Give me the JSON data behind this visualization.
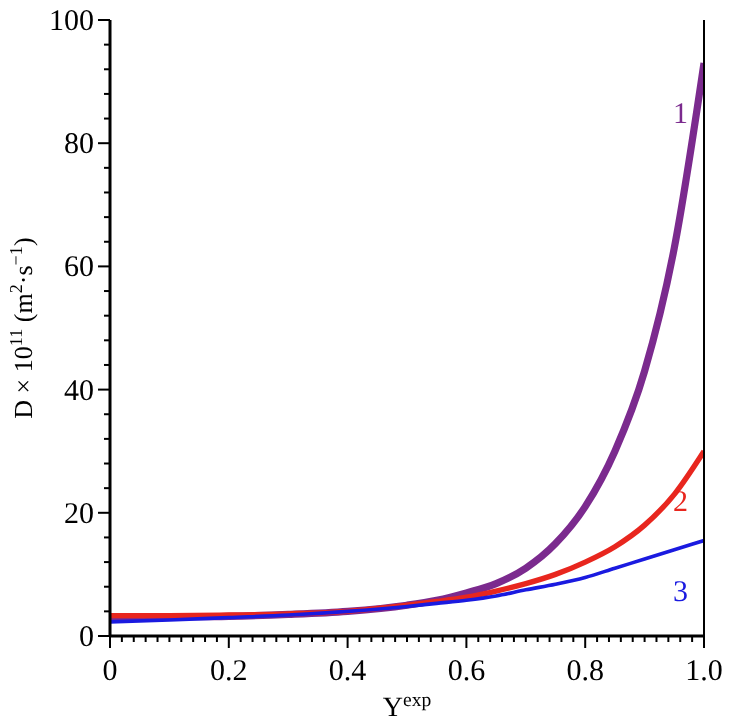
{
  "chart_data": {
    "type": "line",
    "xlabel": "Y$^{exp}$",
    "ylabel": "D × 10$^{11}$ (m$^{2}$·s$^{−1}$)",
    "xlim": [
      0,
      1
    ],
    "ylim": [
      0,
      100
    ],
    "xticks": [
      0,
      {
        "value": 0.02,
        "label": null
      },
      {
        "value": 0.04,
        "label": null
      },
      {
        "value": 0.06,
        "label": null
      },
      {
        "value": 0.08,
        "label": null
      },
      {
        "value": 0.1,
        "label": null
      },
      {
        "value": 0.12,
        "label": null
      },
      {
        "value": 0.14,
        "label": null
      },
      {
        "value": 0.16,
        "label": null
      },
      {
        "value": 0.18,
        "label": null
      },
      0.2,
      {
        "value": 0.22,
        "label": null
      },
      {
        "value": 0.24,
        "label": null
      },
      {
        "value": 0.26,
        "label": null
      },
      {
        "value": 0.28,
        "label": null
      },
      {
        "value": 0.3,
        "label": null
      },
      {
        "value": 0.32,
        "label": null
      },
      {
        "value": 0.34,
        "label": null
      },
      {
        "value": 0.36,
        "label": null
      },
      {
        "value": 0.38,
        "label": null
      },
      0.4,
      {
        "value": 0.42,
        "label": null
      },
      {
        "value": 0.44,
        "label": null
      },
      {
        "value": 0.46,
        "label": null
      },
      {
        "value": 0.48,
        "label": null
      },
      {
        "value": 0.5,
        "label": null
      },
      {
        "value": 0.52,
        "label": null
      },
      {
        "value": 0.54,
        "label": null
      },
      {
        "value": 0.56,
        "label": null
      },
      {
        "value": 0.58,
        "label": null
      },
      0.6,
      {
        "value": 0.62,
        "label": null
      },
      {
        "value": 0.64,
        "label": null
      },
      {
        "value": 0.66,
        "label": null
      },
      {
        "value": 0.68,
        "label": null
      },
      {
        "value": 0.7,
        "label": null
      },
      {
        "value": 0.72,
        "label": null
      },
      {
        "value": 0.74,
        "label": null
      },
      {
        "value": 0.76,
        "label": null
      },
      {
        "value": 0.78,
        "label": null
      },
      0.8,
      {
        "value": 0.82,
        "label": null
      },
      {
        "value": 0.84,
        "label": null
      },
      {
        "value": 0.86,
        "label": null
      },
      {
        "value": 0.88,
        "label": null
      },
      {
        "value": 0.9,
        "label": null
      },
      {
        "value": 0.92,
        "label": null
      },
      {
        "value": 0.94,
        "label": null
      },
      {
        "value": 0.96,
        "label": null
      },
      {
        "value": 0.98,
        "label": null
      },
      {
        "value": 1,
        "label": "1.0"
      }
    ],
    "yticks": [
      0,
      {
        "value": 4,
        "label": null
      },
      {
        "value": 8,
        "label": null
      },
      {
        "value": 12,
        "label": null
      },
      {
        "value": 16,
        "label": null
      },
      20,
      {
        "value": 24,
        "label": null
      },
      {
        "value": 28,
        "label": null
      },
      {
        "value": 32,
        "label": null
      },
      {
        "value": 36,
        "label": null
      },
      40,
      {
        "value": 44,
        "label": null
      },
      {
        "value": 48,
        "label": null
      },
      {
        "value": 52,
        "label": null
      },
      {
        "value": 56,
        "label": null
      },
      60,
      {
        "value": 64,
        "label": null
      },
      {
        "value": 68,
        "label": null
      },
      {
        "value": 72,
        "label": null
      },
      {
        "value": 76,
        "label": null
      },
      80,
      {
        "value": 84,
        "label": null
      },
      {
        "value": 88,
        "label": null
      },
      {
        "value": 92,
        "label": null
      },
      {
        "value": 96,
        "label": null
      },
      100
    ],
    "grid": false,
    "legend": false,
    "marker": "none",
    "line_style": "solid",
    "x": [
      0,
      0.1,
      0.2,
      0.3,
      0.4,
      0.5,
      0.55,
      0.6,
      0.65,
      0.7,
      0.75,
      0.8,
      0.85,
      0.9,
      0.95,
      1.0
    ],
    "series": [
      {
        "name": "1",
        "color": "#7b2a8e",
        "values": [
          3,
          3.1,
          3.2,
          3.5,
          4,
          5,
          5.8,
          7,
          8.5,
          11,
          15,
          21,
          30,
          43,
          63,
          93
        ]
      },
      {
        "name": "2",
        "color": "#e8261e",
        "values": [
          3.3,
          3.3,
          3.4,
          3.6,
          4,
          5,
          5.6,
          6.3,
          7.3,
          8.5,
          10,
          12,
          14.5,
          18,
          23,
          30
        ]
      },
      {
        "name": "3",
        "color": "#1a1ae0",
        "values": [
          2.3,
          2.6,
          3,
          3.4,
          4,
          4.8,
          5.3,
          5.8,
          6.5,
          7.5,
          8.4,
          9.5,
          11,
          12.5,
          14,
          15.5
        ]
      }
    ]
  }
}
